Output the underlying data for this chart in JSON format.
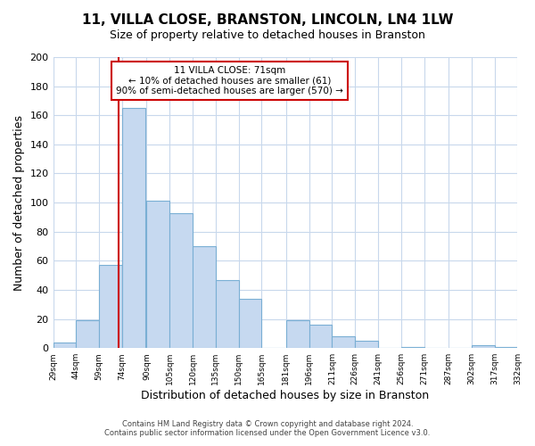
{
  "title": "11, VILLA CLOSE, BRANSTON, LINCOLN, LN4 1LW",
  "subtitle": "Size of property relative to detached houses in Branston",
  "xlabel": "Distribution of detached houses by size in Branston",
  "ylabel": "Number of detached properties",
  "bar_left_edges": [
    29,
    44,
    59,
    74,
    90,
    105,
    120,
    135,
    150,
    165,
    181,
    196,
    211,
    226,
    241,
    256,
    271,
    287,
    302,
    317
  ],
  "bar_heights": [
    4,
    19,
    57,
    165,
    101,
    93,
    70,
    47,
    34,
    0,
    19,
    16,
    8,
    5,
    0,
    1,
    0,
    0,
    2,
    1
  ],
  "bar_color": "#c6d9f0",
  "bar_edgecolor": "#7aafd4",
  "ylim": [
    0,
    200
  ],
  "yticks": [
    0,
    20,
    40,
    60,
    80,
    100,
    120,
    140,
    160,
    180,
    200
  ],
  "xtick_labels": [
    "29sqm",
    "44sqm",
    "59sqm",
    "74sqm",
    "90sqm",
    "105sqm",
    "120sqm",
    "135sqm",
    "150sqm",
    "165sqm",
    "181sqm",
    "196sqm",
    "211sqm",
    "226sqm",
    "241sqm",
    "256sqm",
    "271sqm",
    "287sqm",
    "302sqm",
    "317sqm",
    "332sqm"
  ],
  "vline_x": 71.5,
  "vline_color": "#cc0000",
  "annotation_text_line1": "11 VILLA CLOSE: 71sqm",
  "annotation_text_line2": "← 10% of detached houses are smaller (61)",
  "annotation_text_line3": "90% of semi-detached houses are larger (570) →",
  "footer_line1": "Contains HM Land Registry data © Crown copyright and database right 2024.",
  "footer_line2": "Contains public sector information licensed under the Open Government Licence v3.0.",
  "background_color": "#ffffff",
  "grid_color": "#c8d8ec",
  "annotation_box_facecolor": "#ffffff",
  "annotation_box_edgecolor": "#cc0000",
  "bin_width": 15
}
